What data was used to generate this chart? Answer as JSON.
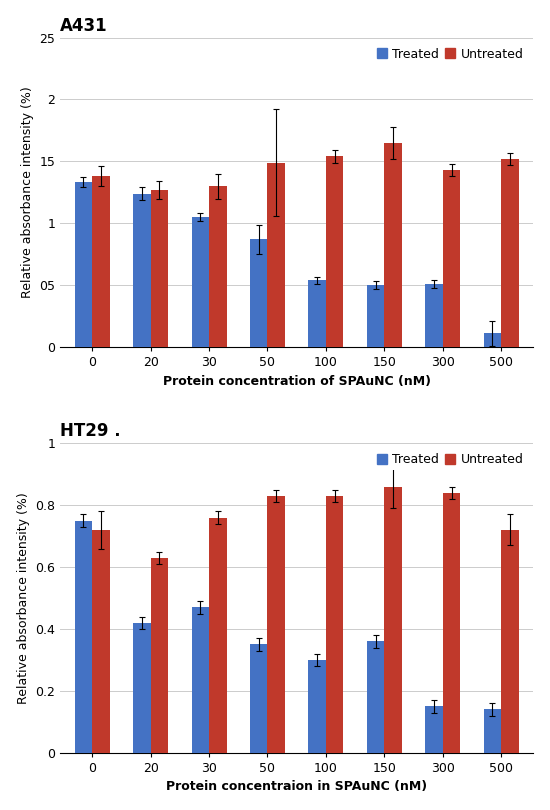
{
  "categories": [
    0,
    20,
    30,
    50,
    100,
    150,
    300,
    500
  ],
  "cat_labels": [
    "0",
    "20",
    "30",
    "50",
    "100",
    "150",
    "300",
    "500"
  ],
  "A431": {
    "title": "A431",
    "treated": [
      1.33,
      1.24,
      1.05,
      0.87,
      0.54,
      0.5,
      0.51,
      0.11
    ],
    "untreated": [
      1.38,
      1.27,
      1.3,
      1.49,
      1.54,
      1.65,
      1.43,
      1.52
    ],
    "treated_err": [
      0.04,
      0.05,
      0.03,
      0.12,
      0.03,
      0.03,
      0.03,
      0.1
    ],
    "untreated_err": [
      0.08,
      0.07,
      0.1,
      0.43,
      0.05,
      0.13,
      0.05,
      0.05
    ],
    "ylabel": "Relative absorbance intensity (%)",
    "xlabel": "Protein concentration of SPAuNC (nM)",
    "ylim": [
      0,
      2.5
    ],
    "yticks": [
      0,
      0.5,
      1.0,
      1.5,
      2.0,
      2.5
    ],
    "ytick_labels": [
      "0",
      "05",
      "1",
      "15",
      "2",
      "25"
    ]
  },
  "HT29": {
    "title": "HT29 .",
    "treated": [
      0.75,
      0.42,
      0.47,
      0.35,
      0.3,
      0.36,
      0.15,
      0.14
    ],
    "untreated": [
      0.72,
      0.63,
      0.76,
      0.83,
      0.83,
      0.86,
      0.84,
      0.72
    ],
    "treated_err": [
      0.02,
      0.02,
      0.02,
      0.02,
      0.02,
      0.02,
      0.02,
      0.02
    ],
    "untreated_err": [
      0.06,
      0.02,
      0.02,
      0.02,
      0.02,
      0.07,
      0.02,
      0.05
    ],
    "ylabel": "Relative absorbance intensity (%)",
    "xlabel": "Protein concentraion in SPAuNC (nM)",
    "ylim": [
      0,
      1.0
    ],
    "yticks": [
      0,
      0.2,
      0.4,
      0.6,
      0.8,
      1.0
    ],
    "ytick_labels": [
      "0",
      "0.2",
      "0.4",
      "0.6",
      "0.8",
      "1"
    ]
  },
  "treated_color": "#4472C4",
  "untreated_color": "#C0392B",
  "bar_width": 0.3,
  "background_color": "#FFFFFF",
  "title_fontsize": 12,
  "label_fontsize": 9,
  "tick_fontsize": 9,
  "legend_fontsize": 9,
  "figsize": [
    5.5,
    8.1
  ]
}
